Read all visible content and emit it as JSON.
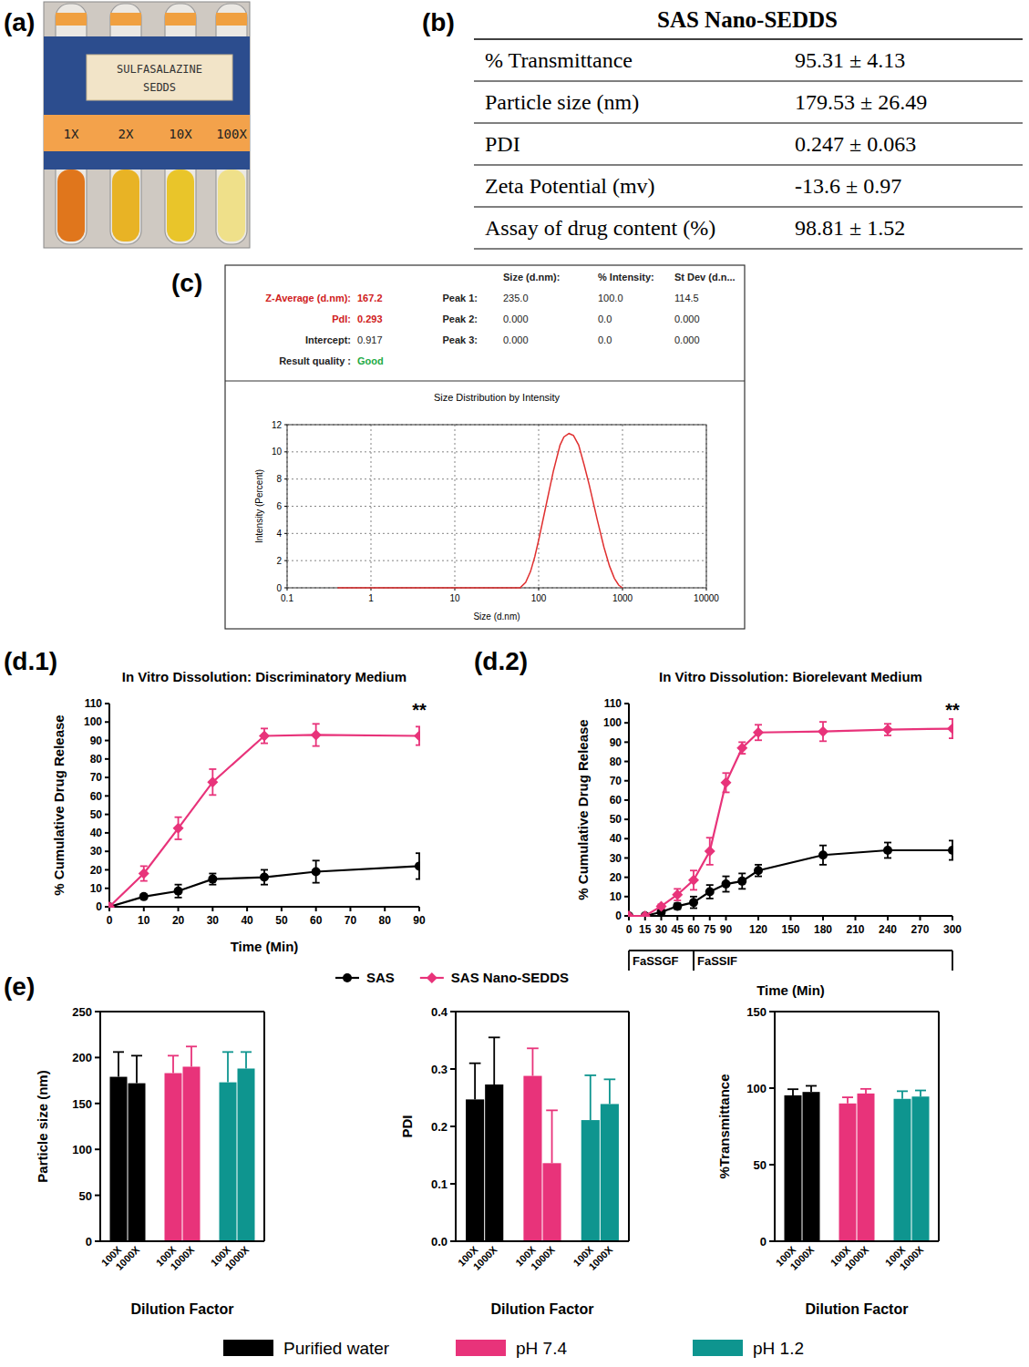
{
  "panels": {
    "a": "(a)",
    "b": "(b)",
    "c": "(c)",
    "d1": "(d.1)",
    "d2": "(d.2)",
    "e": "(e)"
  },
  "photo": {
    "label": [
      "SULFASALAZINE",
      "SEDDS"
    ],
    "dilutions": [
      "1X",
      "2X",
      "10X",
      "100X"
    ],
    "colors": [
      "#e0761c",
      "#e8b325",
      "#e9c52a",
      "#efe08a"
    ]
  },
  "table": {
    "title": "SAS Nano-SEDDS",
    "rows": [
      [
        "% Transmittance",
        "95.31 ± 4.13"
      ],
      [
        "Particle size (nm)",
        "179.53 ± 26.49"
      ],
      [
        "PDI",
        "0.247 ± 0.063"
      ],
      [
        "Zeta Potential (mv)",
        "-13.6 ± 0.97"
      ],
      [
        "Assay of drug content (%)",
        "98.81 ± 1.52"
      ]
    ]
  },
  "dls_report": {
    "rows": [
      {
        "label": "Z-Average (d.nm):",
        "value": "167.2",
        "color": "#d02020"
      },
      {
        "label": "PdI:",
        "value": "0.293",
        "color": "#d02020"
      },
      {
        "label": "Intercept:",
        "value": "0.917",
        "color": "#222222"
      },
      {
        "label": "Result quality :",
        "value": "Good",
        "color": "#22aa44"
      }
    ],
    "columns": [
      "Size (d.nm):",
      "% Intensity:",
      "St Dev (d.n..."
    ],
    "peaks": [
      {
        "label": "Peak 1:",
        "values": [
          "235.0",
          "100.0",
          "114.5"
        ]
      },
      {
        "label": "Peak 2:",
        "values": [
          "0.000",
          "0.0",
          "0.000"
        ]
      },
      {
        "label": "Peak 3:",
        "values": [
          "0.000",
          "0.0",
          "0.000"
        ]
      }
    ]
  },
  "chart_data": [
    {
      "type": "line",
      "title": "Size Distribution by Intensity",
      "x_label": "Size (d.nm)",
      "y_label": "Intensity (Percent)",
      "log": "x",
      "grid": true,
      "color": "#e03030",
      "x": [
        0.4,
        60,
        70,
        80,
        90,
        100,
        120,
        150,
        180,
        200,
        230,
        260,
        300,
        350,
        400,
        500,
        600,
        700,
        800,
        900,
        1000
      ],
      "values": [
        0,
        0,
        0.4,
        1.2,
        2.3,
        3.5,
        5.8,
        8.6,
        10.5,
        11.1,
        11.35,
        11.2,
        10.5,
        9.0,
        7.6,
        5.0,
        3.0,
        1.6,
        0.7,
        0.2,
        0
      ],
      "xlim": [
        0.1,
        10000
      ],
      "xticks": [
        0.1,
        1,
        10,
        100,
        1000,
        10000
      ],
      "ylim": [
        0,
        12
      ],
      "yticks": [
        0,
        2,
        4,
        6,
        8,
        10,
        12
      ]
    },
    {
      "type": "line",
      "title": "In Vitro Dissolution: Discriminatory Medium",
      "x_label": "Time (Min)",
      "y_label": "% Cumulative Drug Release",
      "annotation": "**",
      "legend": "bottom",
      "x": [
        0,
        10,
        20,
        30,
        45,
        60,
        90
      ],
      "xlim": [
        0,
        90
      ],
      "xticks": [
        0,
        10,
        20,
        30,
        40,
        50,
        60,
        70,
        80,
        90
      ],
      "ylim": [
        0,
        110
      ],
      "yticks": [
        0,
        10,
        20,
        30,
        40,
        50,
        60,
        70,
        80,
        90,
        100,
        110
      ],
      "series": [
        {
          "name": "SAS",
          "color": "#000000",
          "marker": "circle",
          "values": [
            0,
            5.5,
            8.5,
            15,
            16,
            19,
            22
          ],
          "errors": [
            0,
            0.8,
            3.5,
            3,
            4,
            6,
            7
          ]
        },
        {
          "name": "SAS Nano-SEDDS",
          "color": "#e8337a",
          "marker": "diamond",
          "values": [
            0,
            18,
            42.5,
            67.5,
            92.5,
            93,
            92.5
          ],
          "errors": [
            0,
            4,
            6,
            7,
            4,
            6,
            5
          ]
        }
      ]
    },
    {
      "type": "line",
      "title": "In Vitro Dissolution: Biorelevant Medium",
      "x_label": "Time (Min)",
      "y_label": "% Cumulative Drug Release",
      "annotation": "**",
      "x": [
        0,
        15,
        30,
        45,
        60,
        75,
        90,
        105,
        120,
        180,
        240,
        300
      ],
      "xlim": [
        0,
        300
      ],
      "xticks": [
        0,
        15,
        30,
        45,
        60,
        75,
        90,
        120,
        150,
        180,
        210,
        240,
        270,
        300
      ],
      "ylim": [
        0,
        110
      ],
      "yticks": [
        0,
        10,
        20,
        30,
        40,
        50,
        60,
        70,
        80,
        90,
        100,
        110
      ],
      "phases": [
        {
          "label": "FaSSGF",
          "start": 0,
          "end": 60
        },
        {
          "label": "FaSSIF",
          "start": 60,
          "end": 300
        }
      ],
      "series": [
        {
          "color": "#000000",
          "marker": "circle",
          "values": [
            0,
            0,
            2,
            5,
            7,
            12.5,
            16.5,
            18,
            23.5,
            31.5,
            34,
            34
          ],
          "errors": [
            0,
            0,
            1,
            1.5,
            3,
            3.5,
            4,
            4,
            3,
            5,
            4,
            5
          ]
        },
        {
          "color": "#e8337a",
          "marker": "diamond",
          "values": [
            0,
            0,
            5,
            11,
            18.5,
            33.5,
            69,
            87,
            95,
            95.5,
            96.5,
            97
          ],
          "errors": [
            0,
            0,
            1,
            3,
            5,
            7,
            5,
            3,
            4,
            5,
            3,
            5
          ]
        }
      ]
    },
    {
      "type": "bar",
      "x_label": "Dilution Factor",
      "y_label": "Particle size (nm)",
      "legend": "bottom",
      "categories": [
        "100X",
        "1000X"
      ],
      "ylim": [
        0,
        250
      ],
      "yticks": [
        0,
        50,
        100,
        150,
        200,
        250
      ],
      "series": [
        {
          "name": "Purified water",
          "color": "#000000",
          "values": [
            179,
            172
          ],
          "errors": [
            27,
            30
          ]
        },
        {
          "name": "pH 7.4",
          "color": "#e8337a",
          "values": [
            183,
            190
          ],
          "errors": [
            19,
            22
          ]
        },
        {
          "name": "pH 1.2",
          "color": "#0e958f",
          "values": [
            173,
            188
          ],
          "errors": [
            33,
            18
          ]
        }
      ]
    },
    {
      "type": "bar",
      "x_label": "Dilution Factor",
      "y_label": "PDI",
      "categories": [
        "100X",
        "1000X"
      ],
      "ylim": [
        0,
        0.4
      ],
      "yticks": [
        {
          "value": 0,
          "label": "0.0"
        },
        0.1,
        0.2,
        0.3,
        0.4
      ],
      "series": [
        {
          "color": "#000000",
          "values": [
            0.247,
            0.273
          ],
          "errors": [
            0.063,
            0.082
          ]
        },
        {
          "color": "#e8337a",
          "values": [
            0.288,
            0.136
          ],
          "errors": [
            0.048,
            0.092
          ]
        },
        {
          "color": "#0e958f",
          "values": [
            0.211,
            0.239
          ],
          "errors": [
            0.078,
            0.043
          ]
        }
      ]
    },
    {
      "type": "bar",
      "x_label": "Dilution Factor",
      "y_label": "%Transmittance",
      "categories": [
        "100X",
        "1000X"
      ],
      "ylim": [
        0,
        150
      ],
      "yticks": [
        0,
        50,
        100,
        150
      ],
      "series": [
        {
          "color": "#000000",
          "values": [
            95.3,
            97.5
          ],
          "errors": [
            4,
            4
          ]
        },
        {
          "color": "#e8337a",
          "values": [
            90,
            96.5
          ],
          "errors": [
            4,
            3
          ]
        },
        {
          "color": "#0e958f",
          "values": [
            93,
            94.5
          ],
          "errors": [
            5,
            4
          ]
        }
      ]
    }
  ]
}
